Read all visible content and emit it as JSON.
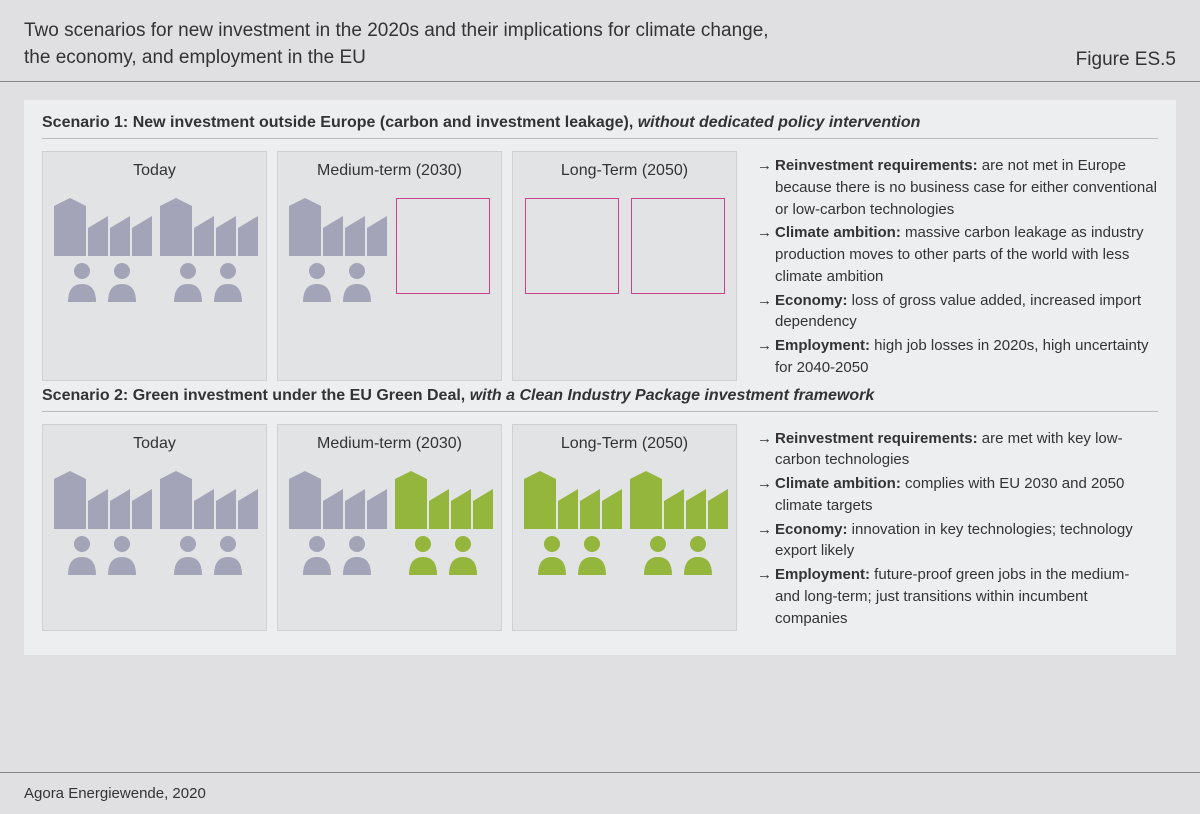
{
  "figure_label": "Figure ES.5",
  "title_lines": [
    "Two scenarios for new investment in the 2020s and their implications for climate change,",
    "the economy, and employment in the EU"
  ],
  "colors": {
    "grey_icon": "#a3a4b7",
    "green_icon": "#94b63c",
    "empty_border": "#c9418a",
    "panel_bg": "#edeef0",
    "card_bg": "#e2e3e5",
    "page_bg": "#e0e0e3",
    "text": "#333333",
    "rule": "#888888"
  },
  "scenario1": {
    "title_prefix": "Scenario 1:  New investment outside Europe (carbon and investment leakage), ",
    "title_em": "without dedicated policy intervention",
    "cards": [
      {
        "label": "Today",
        "left": "grey",
        "right": "grey"
      },
      {
        "label": "Medium-term (2030)",
        "left": "grey",
        "right": "empty"
      },
      {
        "label": "Long-Term (2050)",
        "left": "empty",
        "right": "empty"
      }
    ],
    "bullets": [
      {
        "bold": "Reinvestment requirements:",
        "text": " are not met in Europe because there is no business case for either conventional or low-carbon technologies"
      },
      {
        "bold": "Climate ambition:",
        "text": " massive carbon leakage as industry production moves to other parts of the world with less climate ambition"
      },
      {
        "bold": "Economy:",
        "text": " loss of gross value added, increased import dependency"
      },
      {
        "bold": "Employment:",
        "text": " high job losses in 2020s, high uncertainty for 2040-2050"
      }
    ]
  },
  "scenario2": {
    "title_prefix": "Scenario 2: Green investment under the EU Green Deal, ",
    "title_em": "with a Clean Industry Package investment framework",
    "cards": [
      {
        "label": "Today",
        "left": "grey",
        "right": "grey"
      },
      {
        "label": "Medium-term (2030)",
        "left": "grey",
        "right": "green"
      },
      {
        "label": "Long-Term (2050)",
        "left": "green",
        "right": "green"
      }
    ],
    "bullets": [
      {
        "bold": "Reinvestment requirements:",
        "text": " are met with key low-carbon technologies"
      },
      {
        "bold": "Climate ambition:",
        "text": " complies with EU 2030 and 2050 climate targets"
      },
      {
        "bold": "Economy:",
        "text": " innovation in key technologies; technology export likely"
      },
      {
        "bold": "Employment:",
        "text": " future-proof green jobs in the medium- and long-term; just transitions within incumbent companies"
      }
    ]
  },
  "source": "Agora Energiewende, 2020"
}
